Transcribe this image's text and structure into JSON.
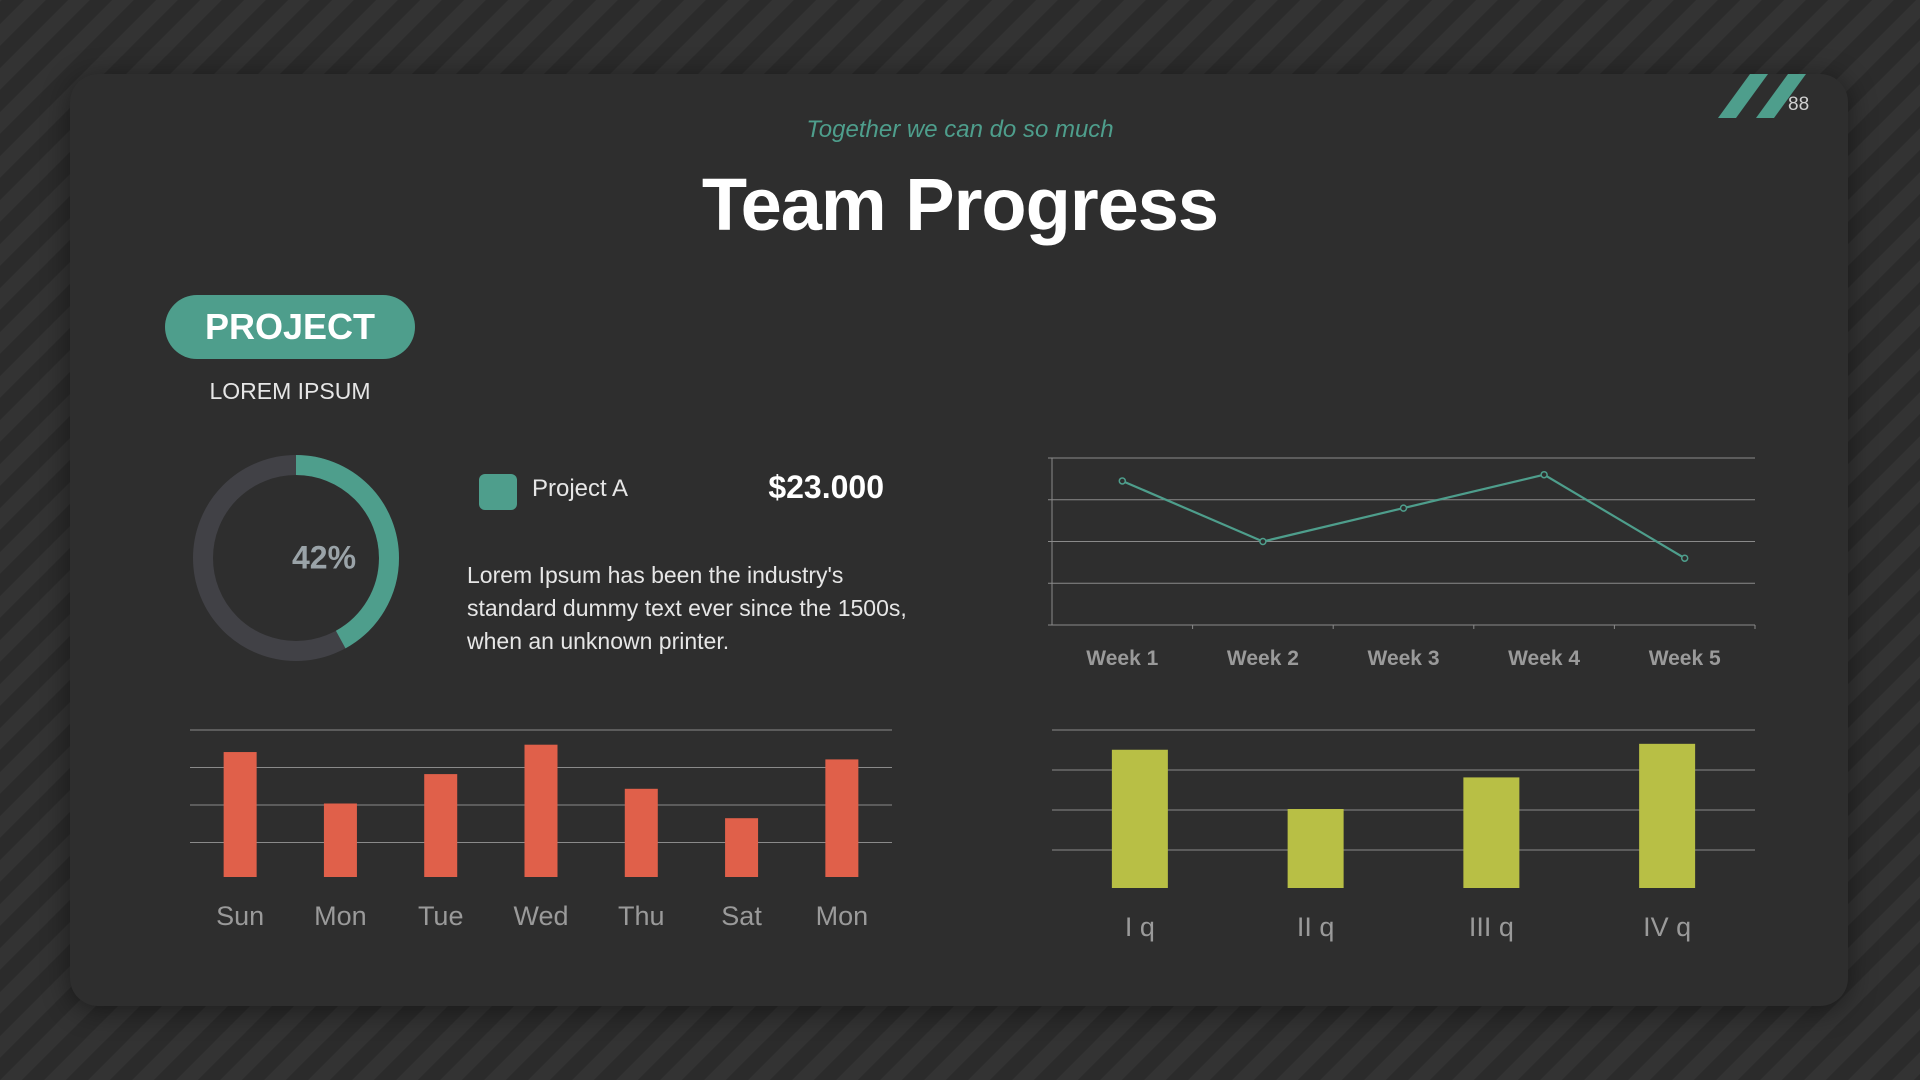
{
  "header": {
    "subtitle": "Together we can do so much",
    "title": "Team Progress",
    "page_number": "88"
  },
  "project": {
    "badge": "PROJECT",
    "caption": "LOREM IPSUM",
    "legend_label": "Project A",
    "amount": "$23.000",
    "description": "Lorem Ipsum has been the industry's standard dummy text ever since the 1500s, when an unknown printer."
  },
  "colors": {
    "background": "#2b2b2b",
    "card": "#2e2e2e",
    "teal": "#4e9e8c",
    "red": "#e0604a",
    "olive": "#b8bf45",
    "track": "#414146",
    "grid": "#8a8a8a",
    "tick_label": "#9a9a9a"
  },
  "icons": {
    "corner": "double-slash-logo-icon"
  },
  "chart_data": [
    {
      "type": "pie",
      "style": "donut",
      "values": [
        42,
        58
      ],
      "label": "42%",
      "colors": [
        "#4e9e8c",
        "#414146"
      ]
    },
    {
      "type": "line",
      "categories": [
        "Week 1",
        "Week 2",
        "Week 3",
        "Week 4",
        "Week 5"
      ],
      "values": [
        3.45,
        2.0,
        2.8,
        3.6,
        1.6
      ],
      "ylim": [
        0,
        4
      ],
      "grid": true,
      "color": "#4e9e8c"
    },
    {
      "type": "bar",
      "categories": [
        "Sun",
        "Mon",
        "Tue",
        "Wed",
        "Thu",
        "Sat",
        "Mon"
      ],
      "values": [
        3.4,
        2.0,
        2.8,
        3.6,
        2.4,
        1.6,
        3.2
      ],
      "ylim": [
        0,
        4
      ],
      "grid": true,
      "color": "#e0604a"
    },
    {
      "type": "bar",
      "categories": [
        "I q",
        "II q",
        "III q",
        "IV q"
      ],
      "values": [
        3.5,
        2.0,
        2.8,
        3.65
      ],
      "ylim": [
        0,
        4
      ],
      "grid": true,
      "color": "#b8bf45"
    }
  ]
}
